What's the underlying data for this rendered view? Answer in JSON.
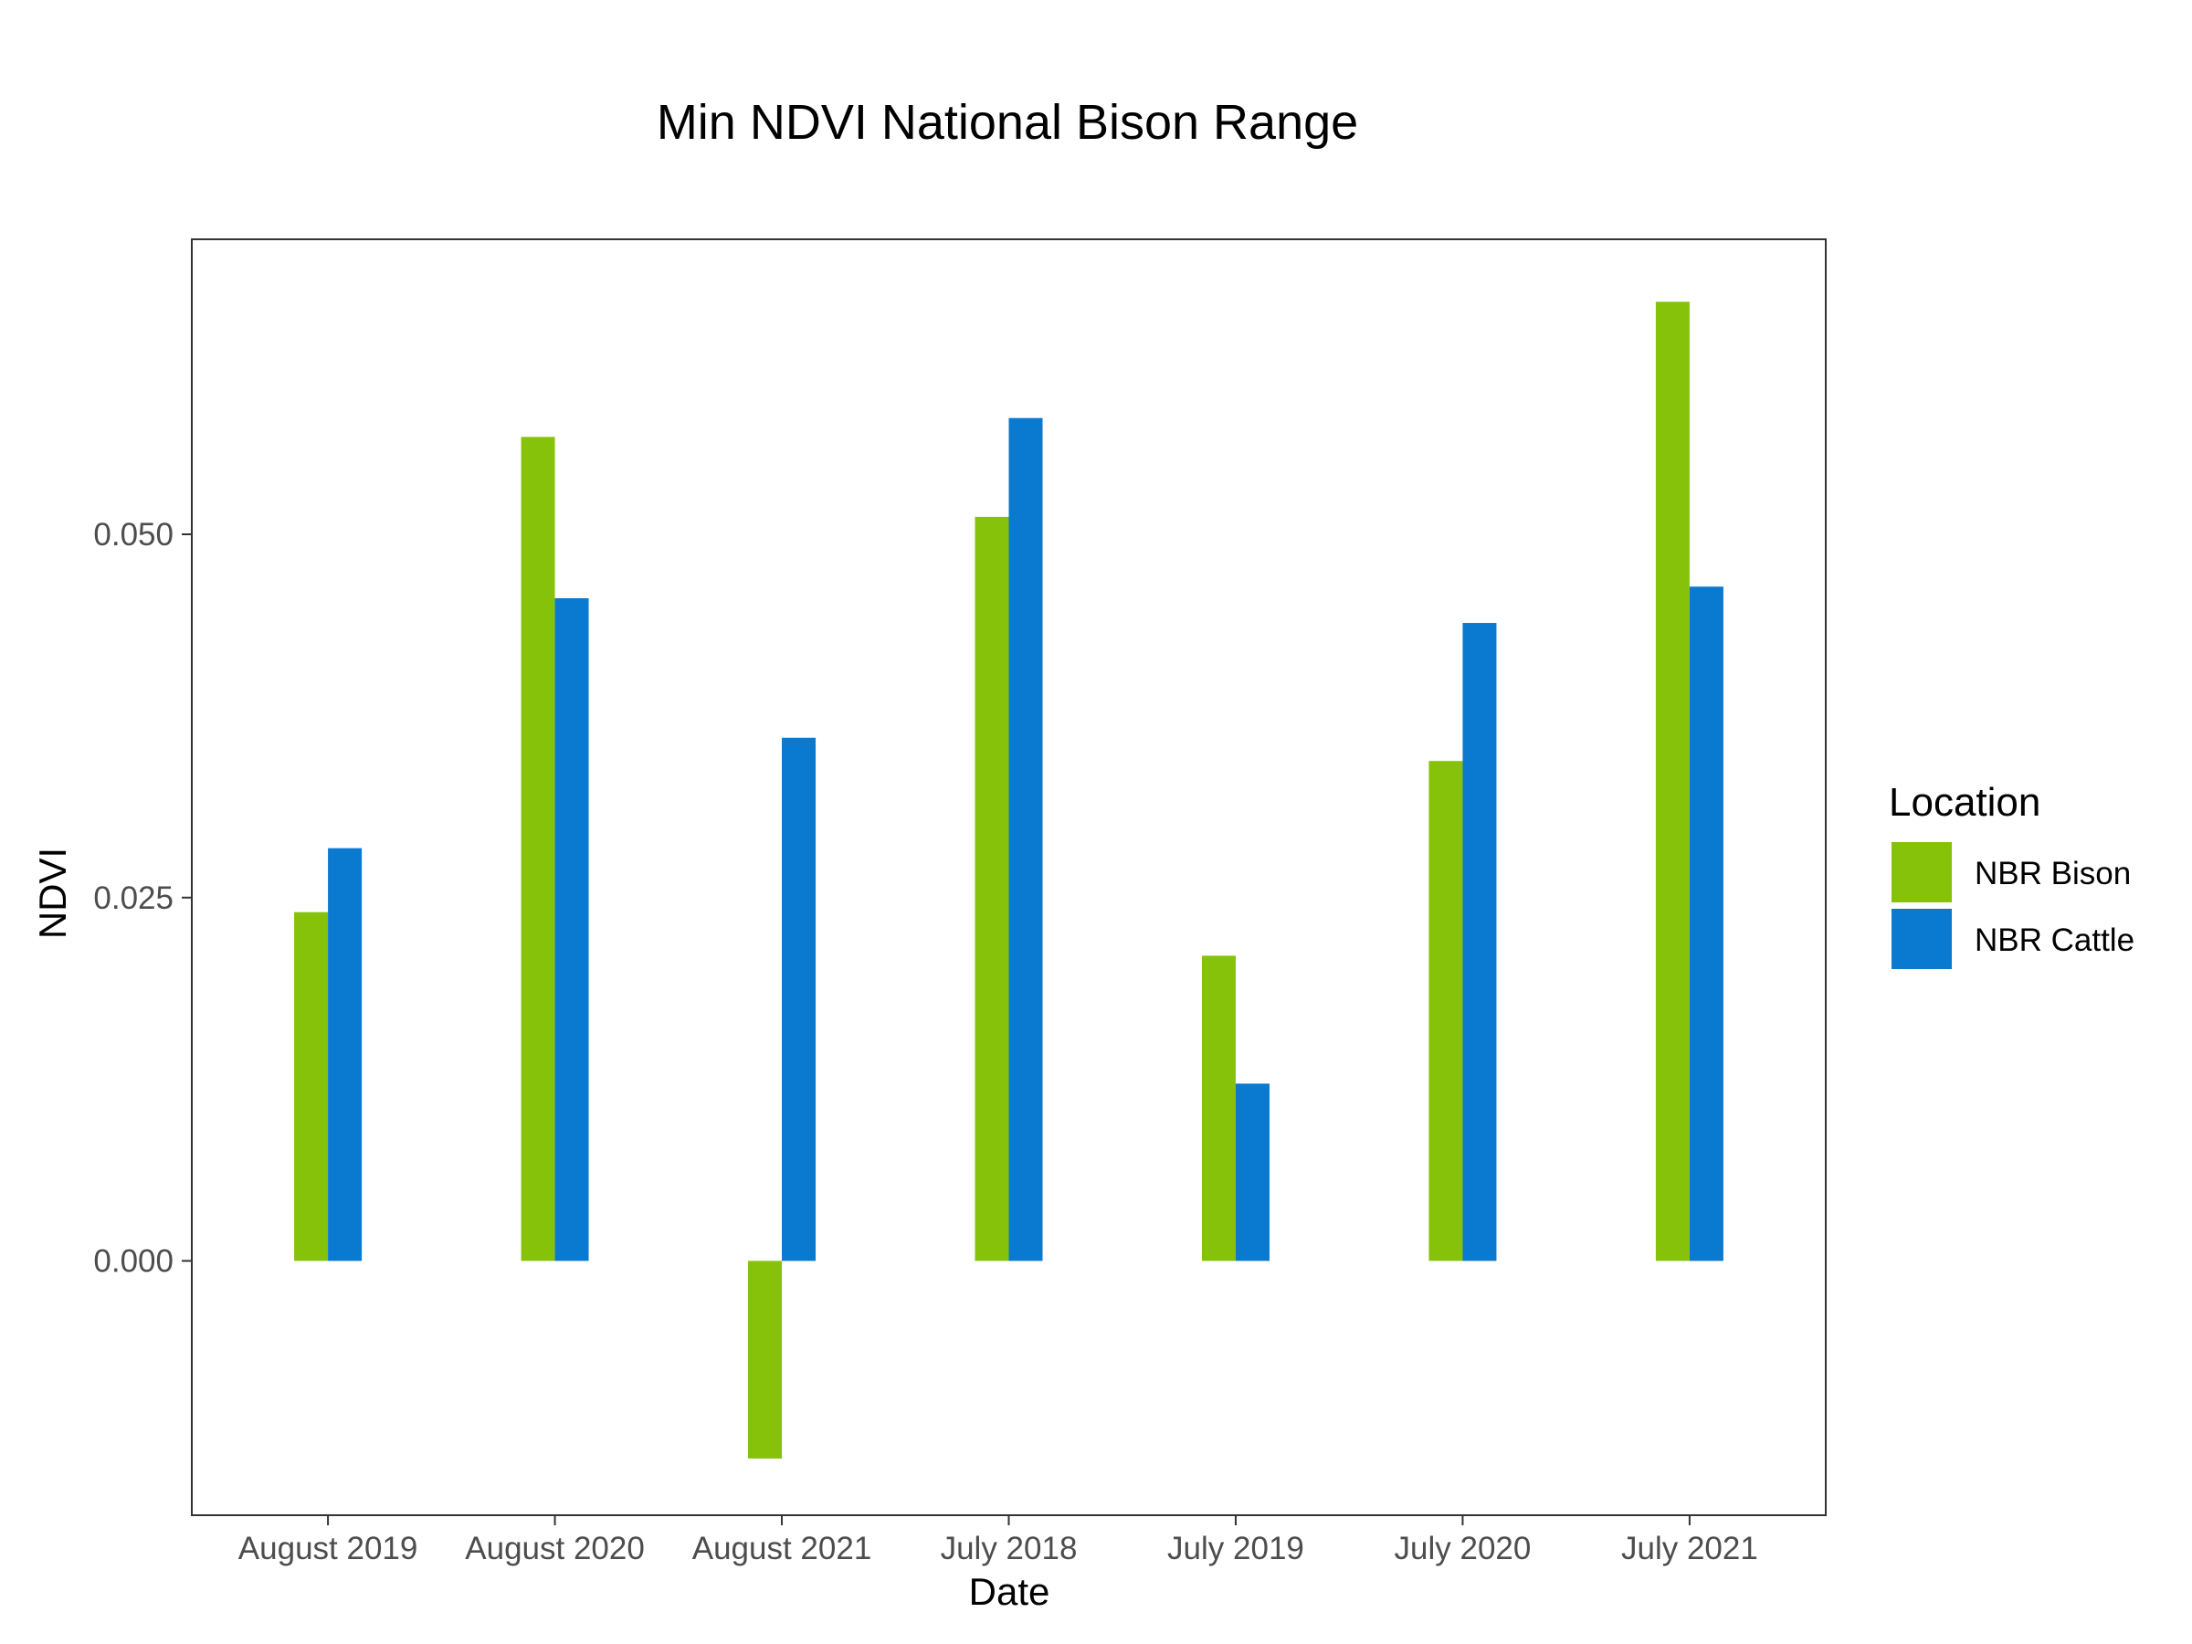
{
  "chart_data": {
    "type": "bar",
    "title": "Min NDVI National Bison Range",
    "xlabel": "Date",
    "ylabel": "NDVI",
    "categories": [
      "August 2019",
      "August 2020",
      "August 2021",
      "July 2018",
      "July 2019",
      "July 2020",
      "July 2021"
    ],
    "series": [
      {
        "name": "NBR Bison",
        "color": "#86c20a",
        "values": [
          0.024,
          0.0567,
          -0.0136,
          0.0512,
          0.021,
          0.0344,
          0.066
        ]
      },
      {
        "name": "NBR Cattle",
        "color": "#0a79d0",
        "values": [
          0.0284,
          0.0456,
          0.036,
          0.058,
          0.0122,
          0.0439,
          0.0464
        ]
      }
    ],
    "ylim": [
      -0.0175,
      0.0703
    ],
    "yticks": [
      0.0,
      0.025,
      0.05
    ],
    "ytick_labels": [
      "0.000",
      "0.025",
      "0.050"
    ],
    "legend": {
      "title": "Location",
      "position": "right"
    },
    "grid": false
  }
}
